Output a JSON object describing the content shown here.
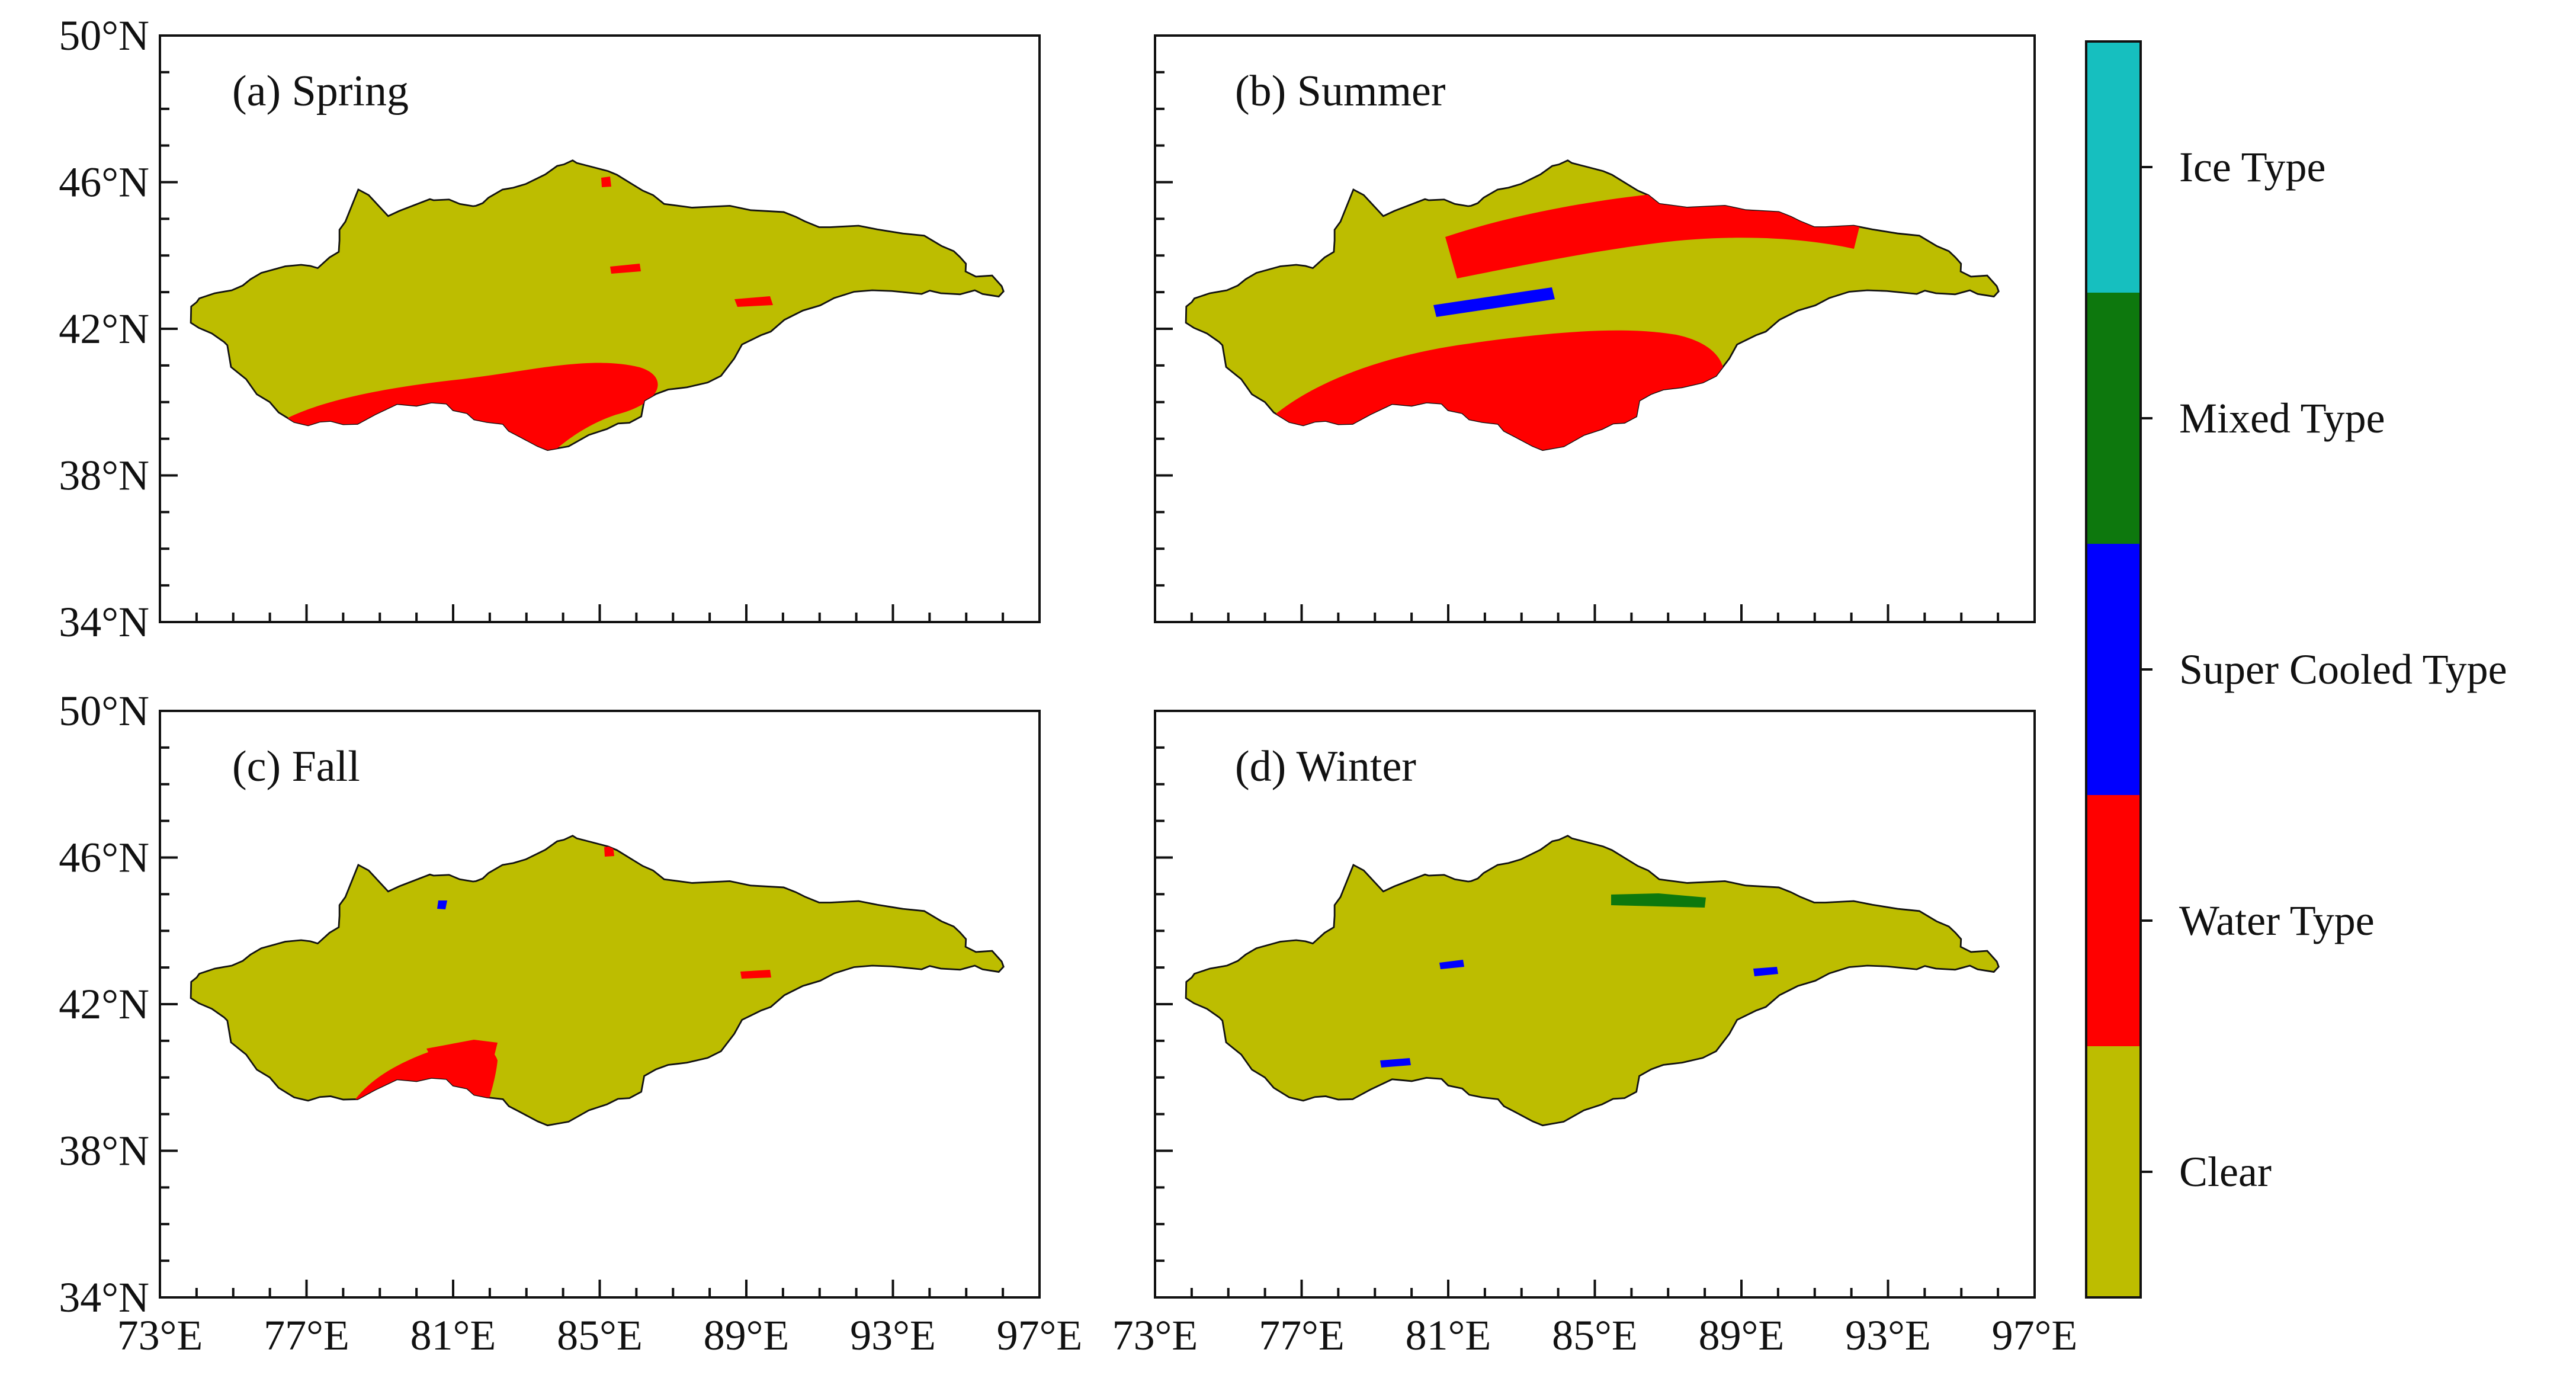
{
  "panels": [
    {
      "id": "a",
      "label": "(a) Spring"
    },
    {
      "id": "b",
      "label": "(b) Summer"
    },
    {
      "id": "c",
      "label": "(c) Fall"
    },
    {
      "id": "d",
      "label": "(d) Winter"
    }
  ],
  "axes": {
    "lon_ticks": [
      "73°E",
      "77°E",
      "81°E",
      "85°E",
      "89°E",
      "93°E",
      "97°E"
    ],
    "lat_ticks": [
      "50°N",
      "46°N",
      "42°N",
      "38°N",
      "34°N"
    ],
    "lon_range": [
      73,
      97
    ],
    "lat_range": [
      34,
      50
    ]
  },
  "legend": {
    "items": [
      {
        "label": "Ice Type",
        "color": "#16bfbf"
      },
      {
        "label": "Mixed Type",
        "color": "#0d780d"
      },
      {
        "label": "Super Cooled Type",
        "color": "#0000ff"
      },
      {
        "label": "Water Type",
        "color": "#ff0000"
      },
      {
        "label": "Clear",
        "color": "#bdbd00"
      }
    ]
  },
  "colors": {
    "clear": "#bdbd00",
    "water": "#ff0000",
    "supercooled": "#0000ff",
    "mixed": "#0d780d",
    "ice": "#16bfbf"
  }
}
